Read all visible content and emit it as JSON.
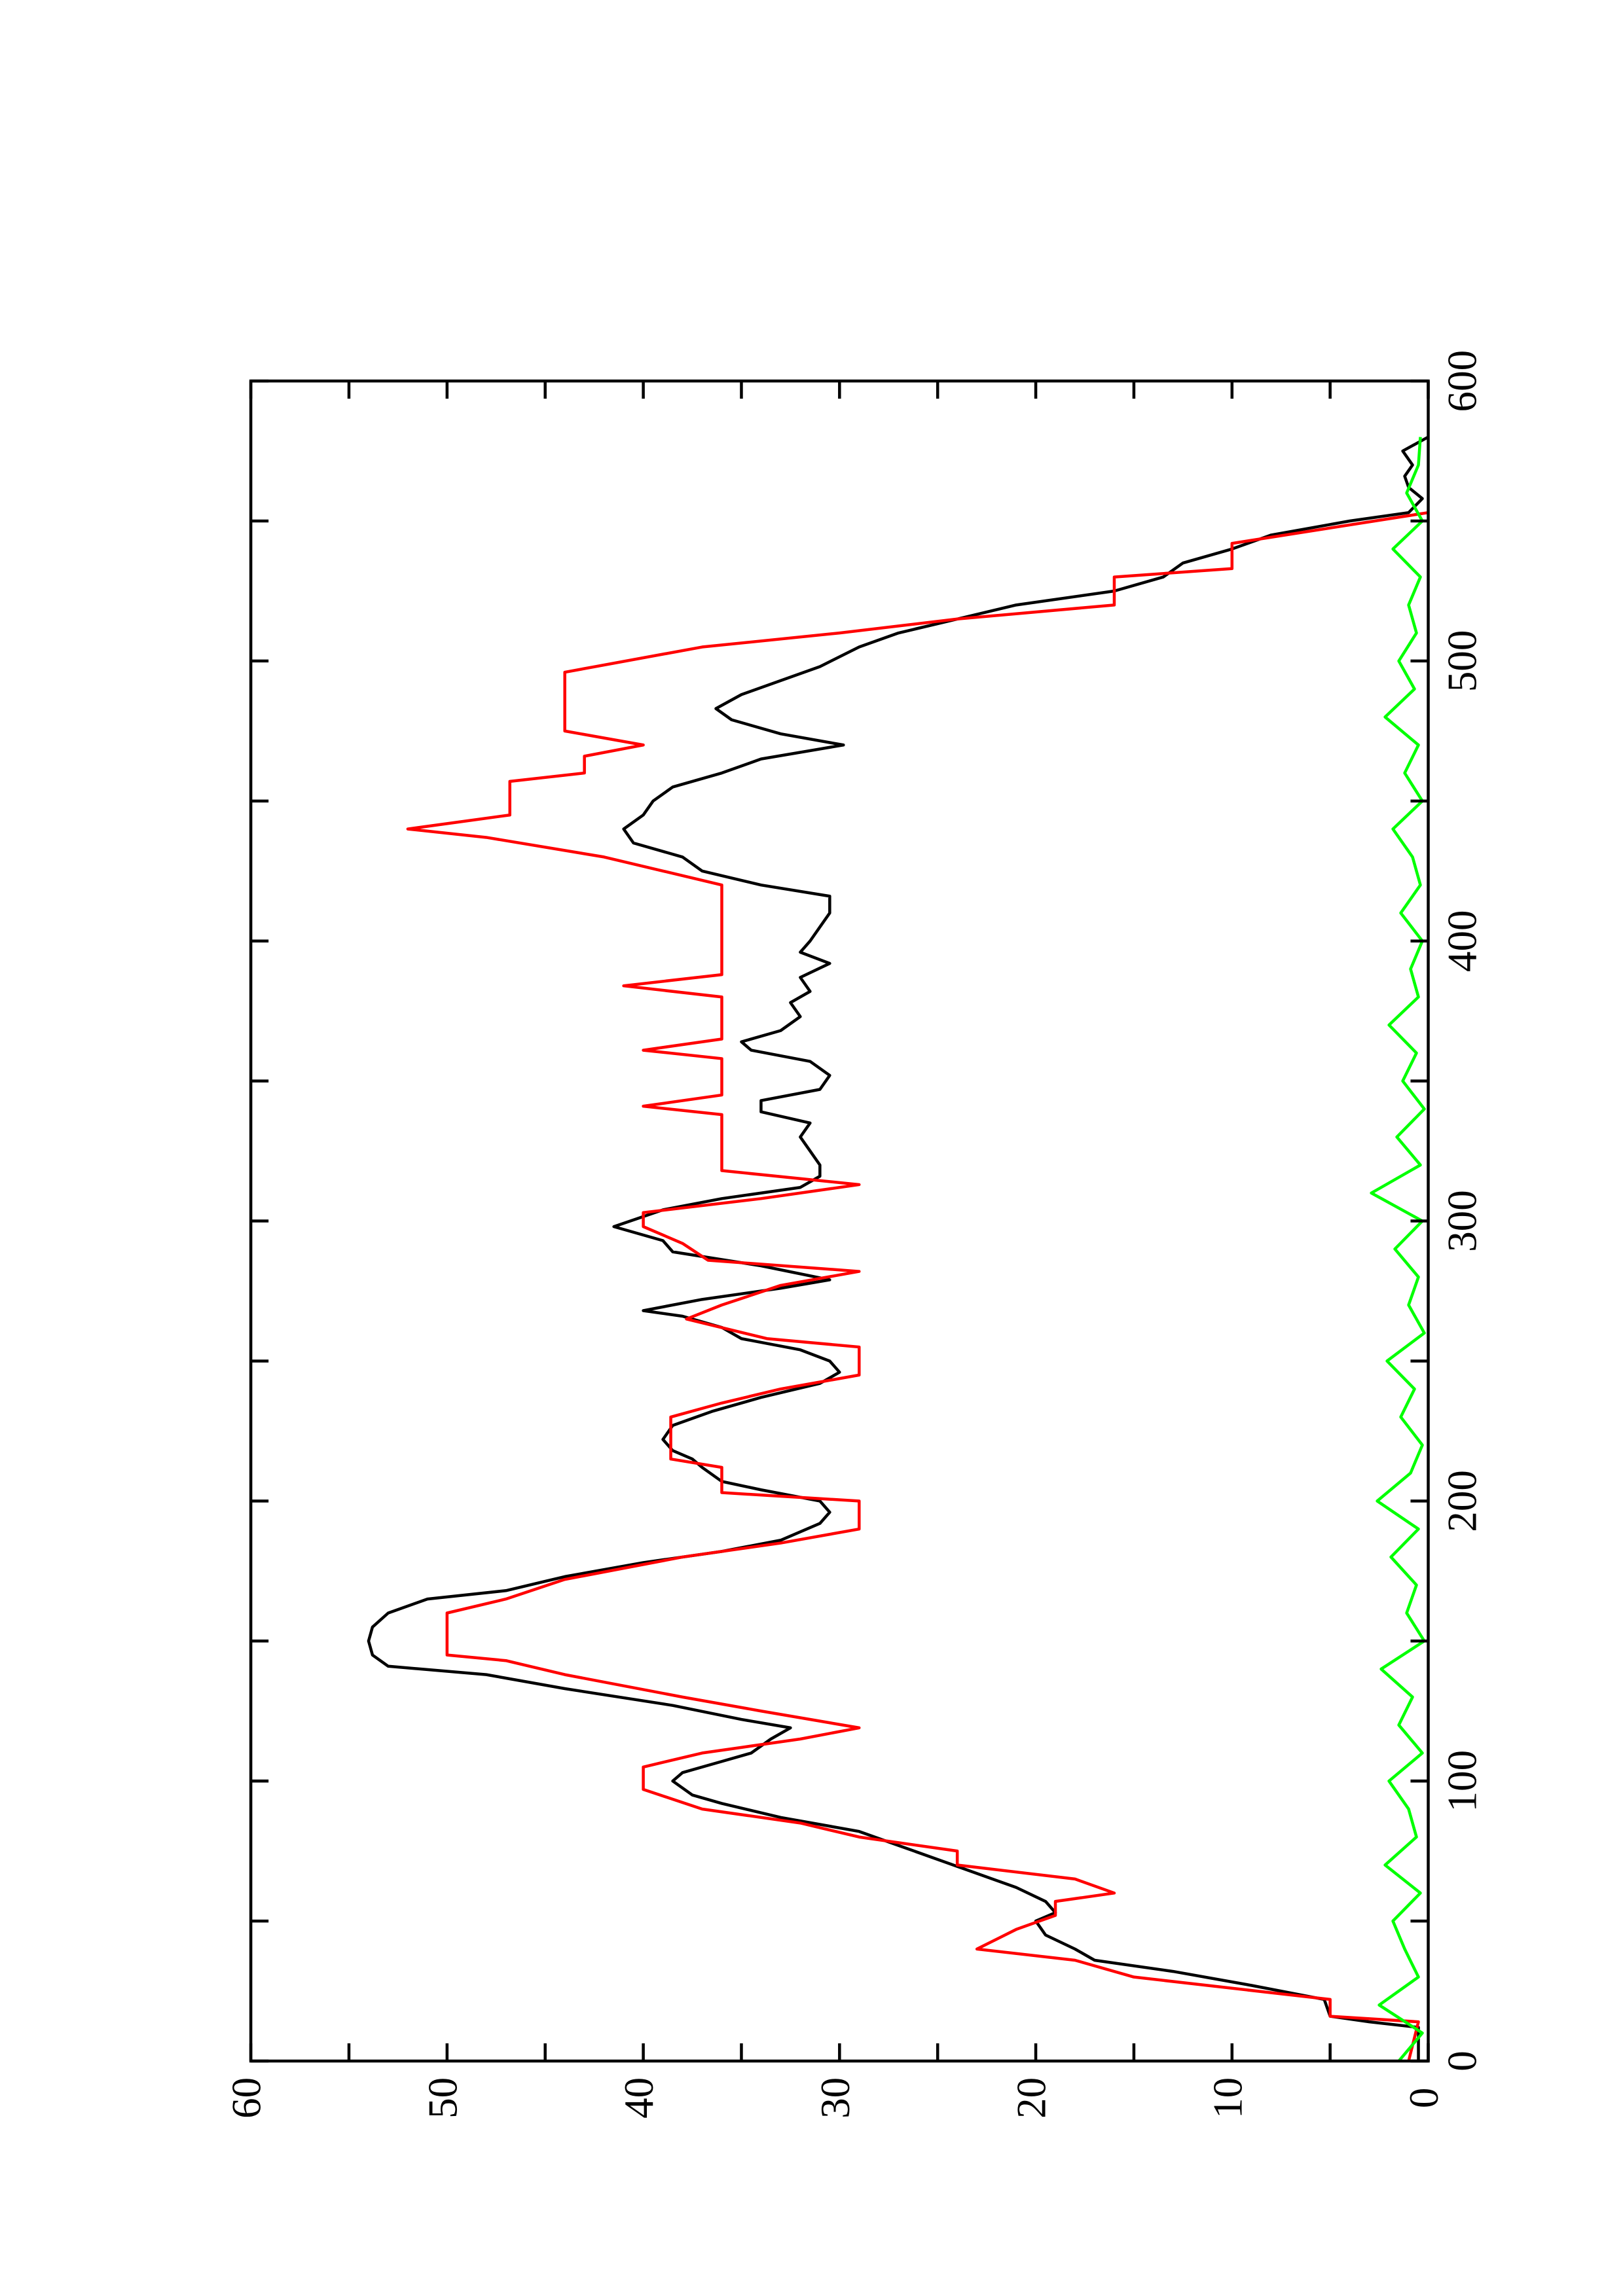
{
  "chart_data": {
    "type": "line",
    "xlim": [
      0,
      600
    ],
    "xticks": [
      0,
      100,
      200,
      300,
      400,
      500,
      600
    ],
    "xminorticks": [
      50,
      150,
      250,
      350,
      450,
      550
    ],
    "ylim": [
      0,
      60
    ],
    "yticks": [
      0,
      10,
      20,
      30,
      40,
      50,
      60
    ],
    "yminorticks": [
      5,
      15,
      25,
      35,
      45,
      55
    ],
    "series": [
      {
        "color": "#000000",
        "x": [
          0,
          12,
          14,
          16,
          22,
          27,
          32,
          36,
          40,
          45,
          50,
          53,
          57,
          62,
          67,
          72,
          77,
          82,
          87,
          92,
          95,
          100,
          103,
          107,
          110,
          115,
          119,
          122,
          127,
          133,
          138,
          141,
          145,
          150,
          155,
          160,
          165,
          168,
          173,
          178,
          182,
          186,
          192,
          196,
          200,
          204,
          207,
          212,
          215,
          218,
          222,
          227,
          232,
          237,
          242,
          246,
          250,
          254,
          258,
          262,
          266,
          268,
          272,
          276,
          279,
          284,
          289,
          293,
          298,
          304,
          308,
          312,
          316,
          320,
          325,
          330,
          335,
          339,
          343,
          347,
          352,
          357,
          361,
          364,
          368,
          373,
          378,
          382,
          387,
          392,
          396,
          400,
          405,
          410,
          416,
          420,
          425,
          430,
          435,
          440,
          445,
          450,
          455,
          460,
          465,
          470,
          474,
          479,
          483,
          488,
          493,
          498,
          505,
          510,
          515,
          520,
          525,
          530,
          535,
          540,
          545,
          550,
          553,
          558,
          562,
          566,
          570,
          575,
          580
        ],
        "values": [
          0.5,
          0.5,
          3,
          5,
          5.3,
          9,
          13,
          17,
          18,
          19.5,
          20,
          19,
          19.5,
          21,
          23,
          25,
          27,
          29,
          33,
          36,
          37.5,
          38.5,
          38,
          36,
          34.5,
          33.5,
          32.5,
          35,
          38.5,
          44,
          48,
          53,
          53.8,
          54,
          53.8,
          53,
          51,
          47,
          44,
          40,
          36,
          33,
          31,
          30.5,
          31,
          34,
          36,
          37,
          37.5,
          38.5,
          39,
          38.5,
          36.5,
          34,
          31,
          30,
          30.5,
          32,
          35,
          36,
          38,
          40,
          37,
          33,
          30.5,
          34,
          38.5,
          39,
          41.5,
          39,
          36,
          32,
          31,
          31,
          31.5,
          32,
          31.5,
          34,
          34,
          31,
          30.5,
          31.5,
          34.5,
          35,
          33,
          32,
          32.5,
          31.5,
          32,
          30.5,
          32,
          31.5,
          31,
          30.5,
          30.5,
          34,
          37,
          38,
          40.5,
          41,
          40,
          39.5,
          38.5,
          36,
          34,
          29.8,
          33,
          35.5,
          36.3,
          35,
          33,
          31,
          29,
          27,
          24,
          21,
          16,
          13.5,
          12.5,
          10,
          8,
          4,
          1,
          0.3,
          1,
          1.2,
          0.8,
          1.3,
          0
        ]
      },
      {
        "color": "#ff0000",
        "x": [
          0,
          14,
          16,
          22,
          30,
          36,
          40,
          47,
          52,
          57,
          60,
          65,
          70,
          75,
          80,
          85,
          90,
          97,
          105,
          110,
          115,
          119,
          125,
          130,
          138,
          143,
          145,
          160,
          165,
          172,
          180,
          185,
          190,
          200,
          203,
          212,
          215,
          230,
          235,
          240,
          245,
          255,
          258,
          265,
          270,
          277,
          282,
          286,
          292,
          298,
          303,
          308,
          313,
          318,
          338,
          341,
          345,
          358,
          361,
          365,
          380,
          384,
          388,
          420,
          425,
          430,
          437,
          440,
          445,
          457,
          460,
          466,
          470,
          475,
          496,
          505,
          510,
          515,
          520,
          530,
          533,
          542,
          553
        ],
        "values": [
          1,
          0.5,
          5,
          5,
          15,
          18,
          23,
          21,
          19,
          19,
          16,
          18,
          24,
          24,
          29,
          32,
          37,
          40,
          40,
          37,
          32,
          29,
          34,
          38,
          44,
          47,
          50,
          50,
          47,
          44,
          38,
          33,
          29,
          29,
          36,
          36,
          38.6,
          38.6,
          36,
          33,
          29,
          29,
          33.7,
          37.8,
          36,
          33,
          29,
          36.7,
          38,
          40,
          40,
          34,
          29,
          36,
          36,
          40,
          36,
          36,
          40,
          36,
          36,
          41,
          36,
          36,
          39,
          42,
          48,
          52,
          46.8,
          46.8,
          43,
          43,
          40,
          44,
          44,
          37,
          30,
          24,
          16,
          16,
          10,
          10,
          0
        ]
      },
      {
        "color": "#00ff00",
        "x": [
          0,
          10,
          20,
          30,
          40,
          50,
          60,
          70,
          80,
          90,
          100,
          110,
          120,
          130,
          140,
          150,
          160,
          170,
          180,
          190,
          200,
          210,
          220,
          230,
          240,
          250,
          260,
          270,
          280,
          290,
          300,
          310,
          320,
          330,
          340,
          350,
          360,
          370,
          380,
          390,
          400,
          410,
          420,
          430,
          440,
          450,
          460,
          470,
          480,
          490,
          500,
          510,
          520,
          530,
          540,
          550,
          560,
          570,
          580
        ],
        "values": [
          1.5,
          0.3,
          2.5,
          0.5,
          1.2,
          1.8,
          0.4,
          2.2,
          0.6,
          1.0,
          2.0,
          0.3,
          1.5,
          0.8,
          2.4,
          0.2,
          1.1,
          0.6,
          1.9,
          0.5,
          2.6,
          0.9,
          0.3,
          1.4,
          0.7,
          2.1,
          0.2,
          1.0,
          0.5,
          1.7,
          0.3,
          2.9,
          0.4,
          1.6,
          0.2,
          1.3,
          0.6,
          2.0,
          0.5,
          0.9,
          0.3,
          1.4,
          0.4,
          0.8,
          1.8,
          0.3,
          1.2,
          0.5,
          2.2,
          0.7,
          1.5,
          0.6,
          1.0,
          0.4,
          1.8,
          0.3,
          1.1,
          0.5,
          0.4
        ]
      }
    ]
  }
}
